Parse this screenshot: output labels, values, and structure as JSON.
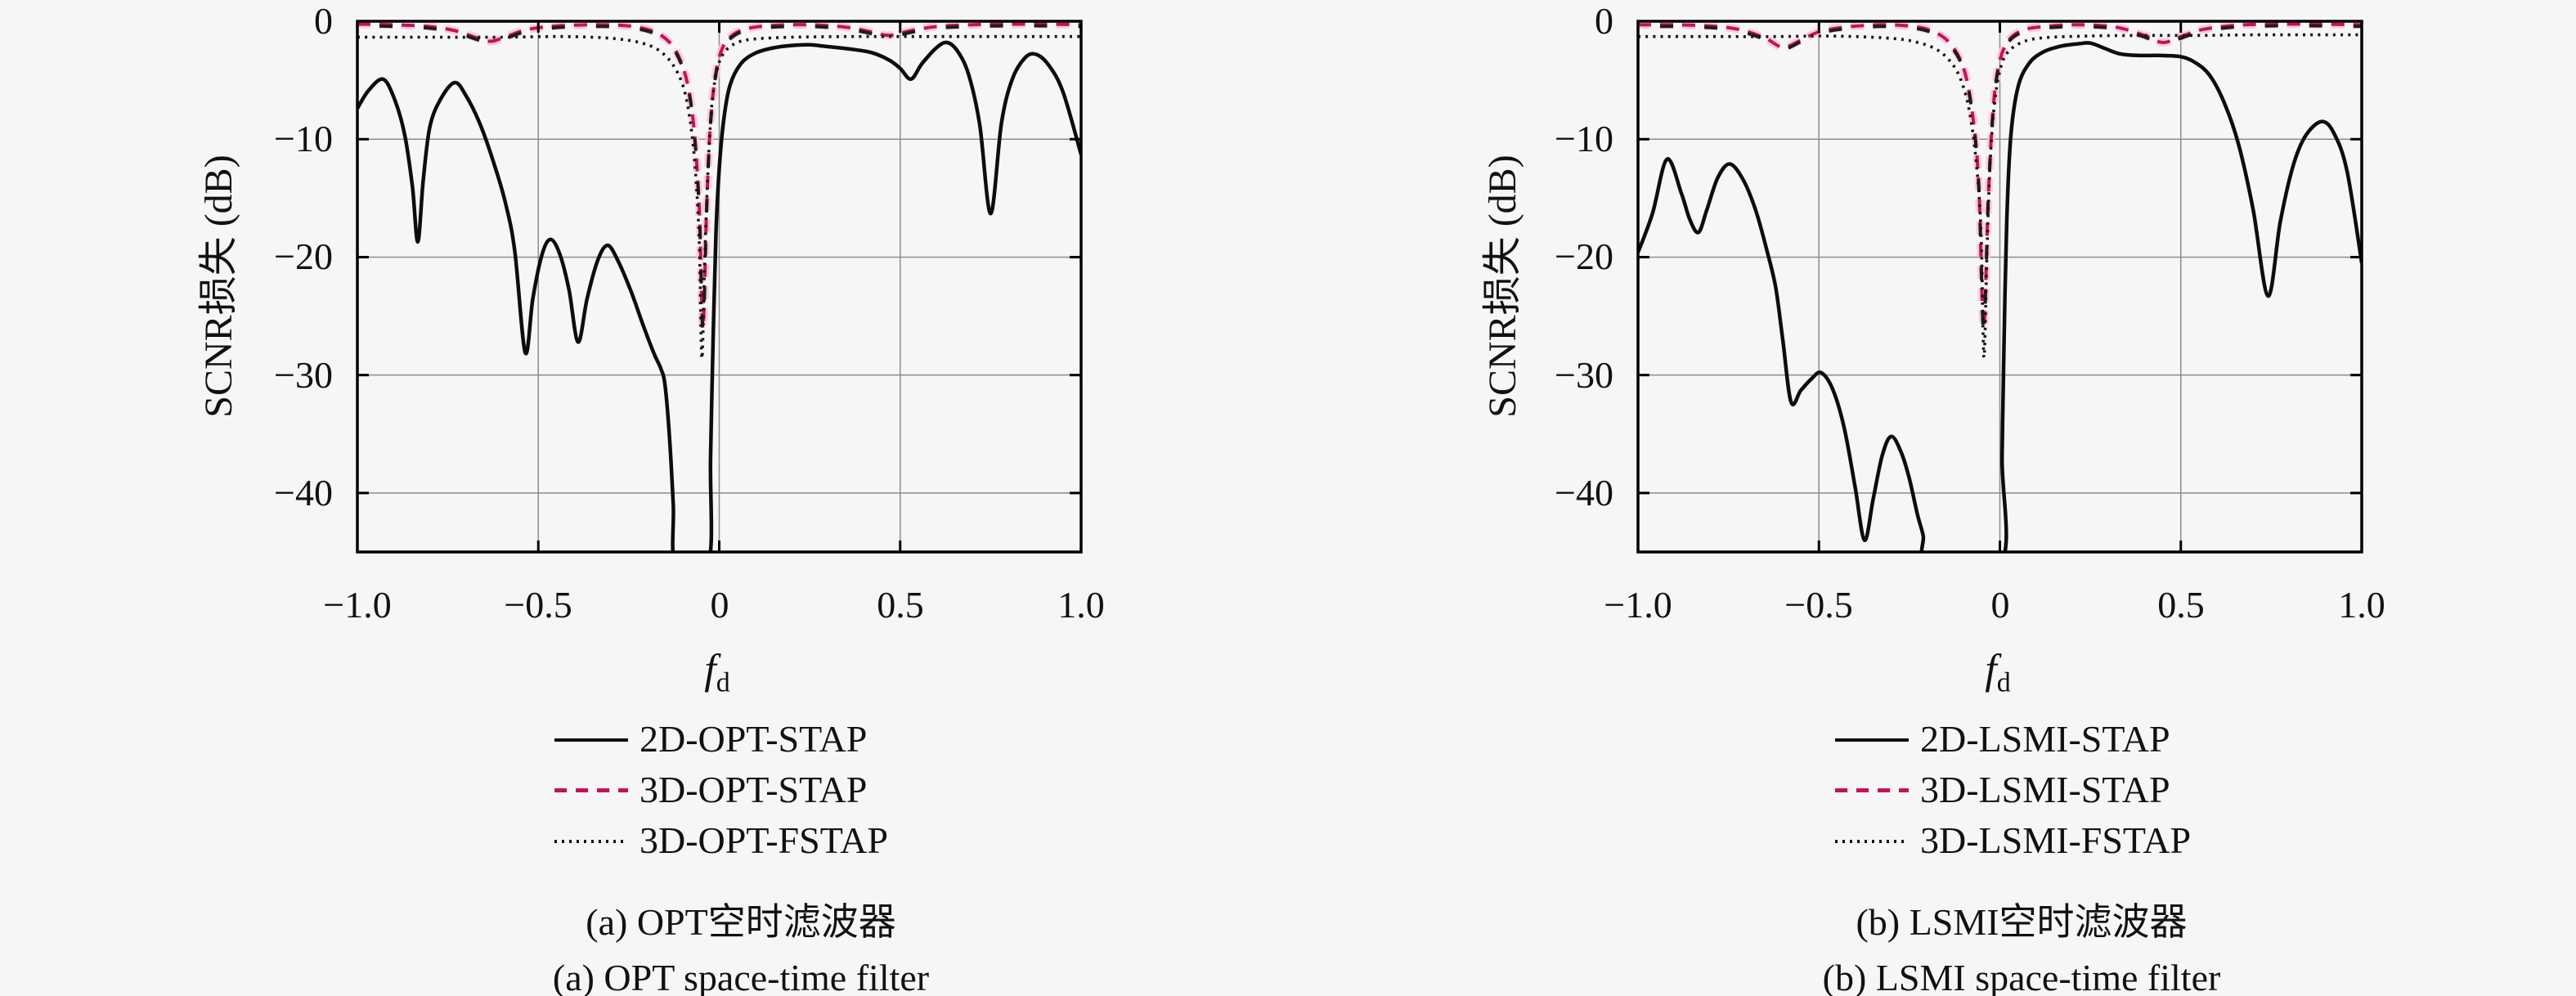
{
  "figure": {
    "background": "#f6f6f7"
  },
  "colors": {
    "solid_line": "#0d0d0d",
    "dashed_line": "#c4135a",
    "dashed_glow": "#ffc6da",
    "dotted_line": "#141414",
    "grid": "#8c8c8c",
    "axis": "#000000",
    "text": "#111111"
  },
  "chart_data": [
    {
      "type": "line",
      "title_zh": "(a) OPT空时滤波器",
      "title_en": "(a) OPT space-time filter",
      "ylabel": "SCNR损失 (dB)",
      "xlabel_main": "f",
      "xlabel_sub": "d",
      "xlim": [
        -1.0,
        1.0
      ],
      "ylim": [
        -45,
        0
      ],
      "grid": true,
      "legend_position": "below",
      "xticks": [
        -1.0,
        -0.5,
        0,
        0.5,
        1.0
      ],
      "x_tick_labels": [
        "−1.0",
        "−0.5",
        "0",
        "0.5",
        "1.0"
      ],
      "yticks": [
        0,
        -10,
        -20,
        -30,
        -40
      ],
      "y_tick_labels": [
        "0",
        "−10",
        "−20",
        "−30",
        "−40"
      ],
      "series": [
        {
          "name": "2D-OPT-STAP",
          "style": "solid",
          "color": "#0d0d0d",
          "points": [
            [
              -1.0,
              -7.4
            ],
            [
              -0.97,
              -5.9
            ],
            [
              -0.93,
              -4.9
            ],
            [
              -0.9,
              -6.4
            ],
            [
              -0.87,
              -9.5
            ],
            [
              -0.848,
              -14.0
            ],
            [
              -0.833,
              -18.7
            ],
            [
              -0.818,
              -13.5
            ],
            [
              -0.8,
              -9.0
            ],
            [
              -0.77,
              -6.6
            ],
            [
              -0.731,
              -5.2
            ],
            [
              -0.7,
              -6.3
            ],
            [
              -0.66,
              -8.8
            ],
            [
              -0.62,
              -12.3
            ],
            [
              -0.59,
              -15.5
            ],
            [
              -0.565,
              -19.5
            ],
            [
              -0.536,
              -28.1
            ],
            [
              -0.515,
              -23.5
            ],
            [
              -0.49,
              -19.8
            ],
            [
              -0.466,
              -18.5
            ],
            [
              -0.44,
              -19.8
            ],
            [
              -0.415,
              -22.8
            ],
            [
              -0.39,
              -27.2
            ],
            [
              -0.365,
              -23.5
            ],
            [
              -0.335,
              -20.2
            ],
            [
              -0.308,
              -19.0
            ],
            [
              -0.28,
              -20.3
            ],
            [
              -0.245,
              -22.8
            ],
            [
              -0.21,
              -25.8
            ],
            [
              -0.18,
              -28.2
            ],
            [
              -0.162,
              -29.4
            ],
            [
              -0.15,
              -30.8
            ],
            [
              -0.138,
              -35.0
            ],
            [
              -0.127,
              -41.0
            ],
            [
              -0.12,
              -46.0
            ],
            [
              -0.03,
              -46.0
            ],
            [
              -0.024,
              -37.0
            ],
            [
              -0.017,
              -27.0
            ],
            [
              -0.009,
              -18.0
            ],
            [
              0.0,
              -12.5
            ],
            [
              0.013,
              -8.2
            ],
            [
              0.03,
              -5.4
            ],
            [
              0.06,
              -3.6
            ],
            [
              0.1,
              -2.7
            ],
            [
              0.15,
              -2.25
            ],
            [
              0.2,
              -2.05
            ],
            [
              0.25,
              -2.0
            ],
            [
              0.3,
              -2.15
            ],
            [
              0.36,
              -2.35
            ],
            [
              0.42,
              -2.65
            ],
            [
              0.47,
              -3.3
            ],
            [
              0.5,
              -4.0
            ],
            [
              0.53,
              -4.9
            ],
            [
              0.56,
              -3.6
            ],
            [
              0.6,
              -2.25
            ],
            [
              0.63,
              -1.8
            ],
            [
              0.66,
              -2.6
            ],
            [
              0.69,
              -4.6
            ],
            [
              0.72,
              -8.8
            ],
            [
              0.75,
              -16.3
            ],
            [
              0.78,
              -8.6
            ],
            [
              0.81,
              -4.9
            ],
            [
              0.845,
              -3.1
            ],
            [
              0.875,
              -2.8
            ],
            [
              0.91,
              -3.7
            ],
            [
              0.95,
              -6.0
            ],
            [
              1.0,
              -11.3
            ]
          ]
        },
        {
          "name": "3D-OPT-STAP",
          "style": "dashed",
          "color": "#c4135a",
          "points": [
            [
              -1.0,
              -0.25
            ],
            [
              -0.9,
              -0.3
            ],
            [
              -0.8,
              -0.45
            ],
            [
              -0.73,
              -0.8
            ],
            [
              -0.67,
              -1.4
            ],
            [
              -0.63,
              -1.7
            ],
            [
              -0.58,
              -1.2
            ],
            [
              -0.53,
              -0.7
            ],
            [
              -0.45,
              -0.4
            ],
            [
              -0.35,
              -0.3
            ],
            [
              -0.27,
              -0.35
            ],
            [
              -0.21,
              -0.6
            ],
            [
              -0.16,
              -1.2
            ],
            [
              -0.12,
              -2.5
            ],
            [
              -0.09,
              -5.0
            ],
            [
              -0.07,
              -9.0
            ],
            [
              -0.055,
              -16.0
            ],
            [
              -0.045,
              -26.0
            ],
            [
              -0.035,
              -16.0
            ],
            [
              -0.025,
              -9.0
            ],
            [
              -0.01,
              -4.5
            ],
            [
              0.01,
              -2.2
            ],
            [
              0.04,
              -1.1
            ],
            [
              0.08,
              -0.6
            ],
            [
              0.15,
              -0.35
            ],
            [
              0.25,
              -0.3
            ],
            [
              0.35,
              -0.5
            ],
            [
              0.42,
              -0.9
            ],
            [
              0.47,
              -1.2
            ],
            [
              0.53,
              -0.8
            ],
            [
              0.6,
              -0.45
            ],
            [
              0.7,
              -0.3
            ],
            [
              0.8,
              -0.25
            ],
            [
              0.9,
              -0.25
            ],
            [
              1.0,
              -0.3
            ]
          ]
        },
        {
          "name": "3D-OPT-FSTAP",
          "style": "dotted",
          "color": "#141414",
          "points": [
            [
              -1.0,
              -1.35
            ],
            [
              -0.8,
              -1.35
            ],
            [
              -0.6,
              -1.35
            ],
            [
              -0.45,
              -1.3
            ],
            [
              -0.35,
              -1.35
            ],
            [
              -0.28,
              -1.5
            ],
            [
              -0.22,
              -1.8
            ],
            [
              -0.17,
              -2.4
            ],
            [
              -0.13,
              -3.6
            ],
            [
              -0.1,
              -5.5
            ],
            [
              -0.08,
              -8.5
            ],
            [
              -0.065,
              -13.0
            ],
            [
              -0.055,
              -19.0
            ],
            [
              -0.048,
              -28.6
            ],
            [
              -0.04,
              -20.0
            ],
            [
              -0.03,
              -12.0
            ],
            [
              -0.02,
              -7.0
            ],
            [
              -0.005,
              -4.0
            ],
            [
              0.015,
              -2.6
            ],
            [
              0.05,
              -1.8
            ],
            [
              0.1,
              -1.5
            ],
            [
              0.2,
              -1.35
            ],
            [
              0.35,
              -1.3
            ],
            [
              0.5,
              -1.3
            ],
            [
              0.65,
              -1.3
            ],
            [
              0.8,
              -1.3
            ],
            [
              1.0,
              -1.3
            ]
          ]
        }
      ]
    },
    {
      "type": "line",
      "title_zh": "(b) LSMI空时滤波器",
      "title_en": "(b) LSMI space-time filter",
      "ylabel": "SCNR损失 (dB)",
      "xlabel_main": "f",
      "xlabel_sub": "d",
      "xlim": [
        -1.0,
        1.0
      ],
      "ylim": [
        -45,
        0
      ],
      "grid": true,
      "legend_position": "below",
      "xticks": [
        -1.0,
        -0.5,
        0,
        0.5,
        1.0
      ],
      "x_tick_labels": [
        "−1.0",
        "−0.5",
        "0",
        "0.5",
        "1.0"
      ],
      "yticks": [
        0,
        -10,
        -20,
        -30,
        -40
      ],
      "y_tick_labels": [
        "0",
        "−10",
        "−20",
        "−30",
        "−40"
      ],
      "series": [
        {
          "name": "2D-LSMI-STAP",
          "style": "solid",
          "color": "#0d0d0d",
          "points": [
            [
              -1.0,
              -19.6
            ],
            [
              -0.96,
              -16.3
            ],
            [
              -0.92,
              -11.7
            ],
            [
              -0.88,
              -14.6
            ],
            [
              -0.857,
              -16.8
            ],
            [
              -0.833,
              -17.9
            ],
            [
              -0.81,
              -16.0
            ],
            [
              -0.78,
              -13.3
            ],
            [
              -0.747,
              -12.1
            ],
            [
              -0.71,
              -13.4
            ],
            [
              -0.675,
              -16.0
            ],
            [
              -0.645,
              -19.3
            ],
            [
              -0.62,
              -22.5
            ],
            [
              -0.6,
              -27.0
            ],
            [
              -0.577,
              -32.3
            ],
            [
              -0.55,
              -31.3
            ],
            [
              -0.52,
              -30.3
            ],
            [
              -0.494,
              -29.8
            ],
            [
              -0.462,
              -31.2
            ],
            [
              -0.43,
              -34.5
            ],
            [
              -0.4,
              -39.5
            ],
            [
              -0.374,
              -44.0
            ],
            [
              -0.35,
              -40.5
            ],
            [
              -0.325,
              -36.8
            ],
            [
              -0.3,
              -35.2
            ],
            [
              -0.272,
              -36.6
            ],
            [
              -0.25,
              -38.8
            ],
            [
              -0.228,
              -41.8
            ],
            [
              -0.212,
              -43.6
            ],
            [
              -0.198,
              -46.0
            ],
            [
              0.002,
              -46.0
            ],
            [
              0.006,
              -37.0
            ],
            [
              0.011,
              -28.0
            ],
            [
              0.019,
              -17.0
            ],
            [
              0.03,
              -9.8
            ],
            [
              0.05,
              -5.6
            ],
            [
              0.08,
              -3.6
            ],
            [
              0.12,
              -2.6
            ],
            [
              0.17,
              -2.1
            ],
            [
              0.22,
              -1.9
            ],
            [
              0.25,
              -1.85
            ],
            [
              0.29,
              -2.3
            ],
            [
              0.33,
              -2.75
            ],
            [
              0.38,
              -2.9
            ],
            [
              0.44,
              -2.9
            ],
            [
              0.5,
              -3.0
            ],
            [
              0.54,
              -3.5
            ],
            [
              0.58,
              -4.6
            ],
            [
              0.62,
              -6.9
            ],
            [
              0.66,
              -10.5
            ],
            [
              0.7,
              -16.0
            ],
            [
              0.741,
              -23.3
            ],
            [
              0.775,
              -17.0
            ],
            [
              0.81,
              -12.3
            ],
            [
              0.845,
              -9.7
            ],
            [
              0.89,
              -8.5
            ],
            [
              0.925,
              -9.6
            ],
            [
              0.96,
              -12.8
            ],
            [
              1.0,
              -20.5
            ]
          ]
        },
        {
          "name": "3D-LSMI-STAP",
          "style": "dashed",
          "color": "#c4135a",
          "points": [
            [
              -1.0,
              -0.3
            ],
            [
              -0.9,
              -0.3
            ],
            [
              -0.8,
              -0.4
            ],
            [
              -0.72,
              -0.7
            ],
            [
              -0.65,
              -1.4
            ],
            [
              -0.6,
              -2.2
            ],
            [
              -0.55,
              -1.6
            ],
            [
              -0.5,
              -0.9
            ],
            [
              -0.43,
              -0.5
            ],
            [
              -0.33,
              -0.3
            ],
            [
              -0.25,
              -0.4
            ],
            [
              -0.19,
              -0.8
            ],
            [
              -0.14,
              -1.8
            ],
            [
              -0.1,
              -4.0
            ],
            [
              -0.075,
              -8.0
            ],
            [
              -0.058,
              -14.0
            ],
            [
              -0.045,
              -26.0
            ],
            [
              -0.032,
              -15.0
            ],
            [
              -0.02,
              -8.0
            ],
            [
              -0.005,
              -4.0
            ],
            [
              0.02,
              -1.8
            ],
            [
              0.06,
              -0.8
            ],
            [
              0.12,
              -0.45
            ],
            [
              0.22,
              -0.3
            ],
            [
              0.32,
              -0.5
            ],
            [
              0.4,
              -1.2
            ],
            [
              0.45,
              -1.8
            ],
            [
              0.5,
              -1.3
            ],
            [
              0.56,
              -0.7
            ],
            [
              0.65,
              -0.35
            ],
            [
              0.75,
              -0.25
            ],
            [
              0.88,
              -0.25
            ],
            [
              1.0,
              -0.3
            ]
          ]
        },
        {
          "name": "3D-LSMI-FSTAP",
          "style": "dotted",
          "color": "#141414",
          "points": [
            [
              -1.0,
              -1.3
            ],
            [
              -0.8,
              -1.3
            ],
            [
              -0.62,
              -1.3
            ],
            [
              -0.5,
              -1.25
            ],
            [
              -0.4,
              -1.3
            ],
            [
              -0.3,
              -1.45
            ],
            [
              -0.24,
              -1.7
            ],
            [
              -0.18,
              -2.3
            ],
            [
              -0.14,
              -3.3
            ],
            [
              -0.11,
              -4.8
            ],
            [
              -0.085,
              -7.5
            ],
            [
              -0.065,
              -12.0
            ],
            [
              -0.052,
              -18.0
            ],
            [
              -0.044,
              -28.5
            ],
            [
              -0.036,
              -20.0
            ],
            [
              -0.027,
              -12.0
            ],
            [
              -0.015,
              -7.0
            ],
            [
              0.0,
              -4.2
            ],
            [
              0.02,
              -2.7
            ],
            [
              0.06,
              -1.8
            ],
            [
              0.12,
              -1.4
            ],
            [
              0.25,
              -1.25
            ],
            [
              0.4,
              -1.2
            ],
            [
              0.55,
              -1.2
            ],
            [
              0.7,
              -1.15
            ],
            [
              0.85,
              -1.15
            ],
            [
              1.0,
              -1.15
            ]
          ]
        }
      ]
    }
  ]
}
